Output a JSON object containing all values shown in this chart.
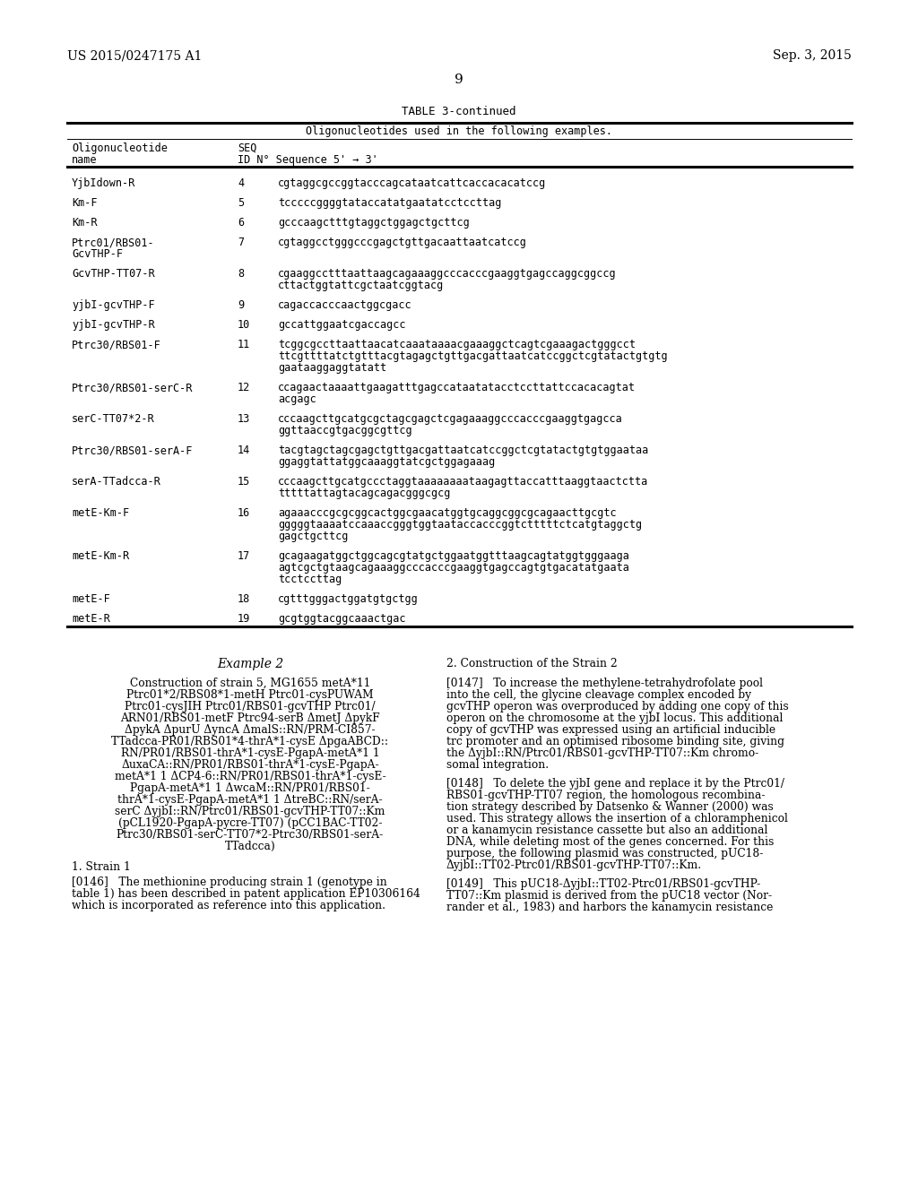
{
  "background_color": "#ffffff",
  "header_left": "US 2015/0247175 A1",
  "header_right": "Sep. 3, 2015",
  "page_number": "9",
  "table_title": "TABLE 3-continued",
  "table_subtitle": "Oligonucleotides used in the following examples.",
  "table_rows": [
    [
      "YjbIdown-R",
      "4",
      [
        "cgtaggcgccggtacccagcataatcattcaccacacatccg"
      ]
    ],
    [
      "Km-F",
      "5",
      [
        "tcccccggggtataccatatgaatatcctccttag"
      ]
    ],
    [
      "Km-R",
      "6",
      [
        "gcccaagctttgtaggctggagctgcttcg"
      ]
    ],
    [
      "Ptrc01/RBS01-\nGcvTHP-F",
      "7",
      [
        "cgtaggcctgggcccgagctgttgacaattaatcatccg"
      ]
    ],
    [
      "GcvTHP-TT07-R",
      "8",
      [
        "cgaaggcctttaattaagcagaaaggcccacccgaaggtgagccaggcggccg",
        "cttactggtattcgctaatcggtacg"
      ]
    ],
    [
      "yjbI-gcvTHP-F",
      "9",
      [
        "cagaccacccaactggcgacc"
      ]
    ],
    [
      "yjbI-gcvTHP-R",
      "10",
      [
        "gccattggaatcgaccagcc"
      ]
    ],
    [
      "Ptrc30/RBS01-F",
      "11",
      [
        "tcggcgccttaattaacatcaaataaaacgaaaggctcagtcgaaagactgggcct",
        "ttcgttttatctgtttacgtagagctgttgacgattaatcatccggctcgtatactgtgtg",
        "gaataaggaggtatatt"
      ]
    ],
    [
      "Ptrc30/RBS01-serC-R",
      "12",
      [
        "ccagaactaaaattgaagatttgagccataatatacctccttattccacacagtat",
        "acgagc"
      ]
    ],
    [
      "serC-TT07*2-R",
      "13",
      [
        "cccaagcttgcatgcgctagcgagctcgagaaaggcccacccgaaggtgagcca",
        "ggttaaccgtgacggcgttcg"
      ]
    ],
    [
      "Ptrc30/RBS01-serA-F",
      "14",
      [
        "tacgtagctagcgagctgttgacgattaatcatccggctcgtatactgtgtggaataa",
        "ggaggtattatggcaaaggtatcgctggagaaag"
      ]
    ],
    [
      "serA-TTadcca-R",
      "15",
      [
        "cccaagcttgcatgccctaggtaaaaaaaataagagttaccatttaaggtaactctta",
        "tttttattagtacagcagacgggcgcg"
      ]
    ],
    [
      "metE-Km-F",
      "16",
      [
        "agaaacccgcgcggcactggcgaacatggtgcaggcggcgcagaacttgcgtc",
        "gggggtaaaatccaaaccgggtggtaataccacccggtctttttctcatgtaggctg",
        "gagctgcttcg"
      ]
    ],
    [
      "metE-Km-R",
      "17",
      [
        "gcagaagatggctggcagcgtatgctggaatggtttaagcagtatggtgggaaga",
        "agtcgctgtaagcagaaaggcccacccgaaggtgagccagtgtgacatatgaata",
        "tcctccttag"
      ]
    ],
    [
      "metE-F",
      "18",
      [
        "cgtttgggactggatgtgctgg"
      ]
    ],
    [
      "metE-R",
      "19",
      [
        "gcgtggtacggcaaactgac"
      ]
    ]
  ],
  "example2_title": "Example 2",
  "example2_left_lines": [
    "Construction of strain 5, MG1655 metA*11",
    "Ptrc01*2/RBS08*1-metH Ptrc01-cysPUWAM",
    "Ptrc01-cysJIH Ptrc01/RBS01-gcvTHP Ptrc01/",
    "ARN01/RBS01-metF Ptrc94-serB ΔmetJ ΔpykF",
    "ΔpykA ΔpurU ΔyncA ΔmalS::RN/PRM-CI857-",
    "TTadcca-PR01/RBS01*4-thrA*1-cysE ΔpgaABCD::",
    "RN/PR01/RBS01-thrA*1-cysE-PgapA-metA*1 1",
    "ΔuxaCA::RN/PR01/RBS01-thrA*1-cysE-PgapA-",
    "metA*1 1 ΔCP4-6::RN/PR01/RBS01-thrA*1-cysE-",
    "PgapA-metA*1 1 ΔwcaM::RN/PR01/RBS01-",
    "thrA*1-cysE-PgapA-metA*1 1 ΔtreBC::RN/serA-",
    "serC ΔyjbI::RN/Ptrc01/RBS01-gcvTHP-TT07::Km",
    "(pCL1920-PgapA-pycre-TT07) (pCC1BAC-TT02-",
    "Ptrc30/RBS01-serC-TT07*2-Ptrc30/RBS01-serA-",
    "TTadcca)"
  ],
  "strain1_heading": "1. Strain 1",
  "strain1_para": "[0146]   The methionine producing strain 1 (genotype in\ntable 1) has been described in patent application EP10306164\nwhich is incorporated as reference into this application.",
  "example2_right_title": "2. Construction of the Strain 2",
  "para0147_lines": [
    "[0147]   To increase the methylene-tetrahydrofolate pool",
    "into the cell, the glycine cleavage complex encoded by",
    "gcvTHP operon was overproduced by adding one copy of this",
    "operon on the chromosome at the yjbI locus. This additional",
    "copy of gcvTHP was expressed using an artificial inducible",
    "trc promoter and an optimised ribosome binding site, giving",
    "the ΔyjbI::RN/Ptrc01/RBS01-gcvTHP-TT07::Km chromo-",
    "somal integration."
  ],
  "para0148_lines": [
    "[0148]   To delete the yjbI gene and replace it by the Ptrc01/",
    "RBS01-gcvTHP-TT07 region, the homologous recombina-",
    "tion strategy described by Datsenko & Wanner (2000) was",
    "used. This strategy allows the insertion of a chloramphenicol",
    "or a kanamycin resistance cassette but also an additional",
    "DNA, while deleting most of the genes concerned. For this",
    "purpose, the following plasmid was constructed, pUC18-",
    "ΔyjbI::TT02-Ptrc01/RBS01-gcvTHP-TT07::Km."
  ],
  "para0149_lines": [
    "[0149]   This pUC18-ΔyjbI::TT02-Ptrc01/RBS01-gcvTHP-",
    "TT07::Km plasmid is derived from the pUC18 vector (Nor-",
    "rander et al., 1983) and harbors the kanamycin resistance"
  ]
}
